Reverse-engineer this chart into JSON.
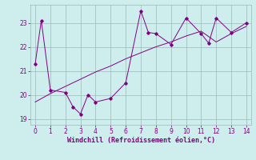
{
  "line1_x": [
    0,
    0.4,
    1,
    2,
    2.5,
    3,
    3.5,
    4,
    5,
    6,
    7,
    7.5,
    8,
    9,
    10,
    11,
    11.5,
    12,
    13,
    14
  ],
  "line1_y": [
    21.3,
    23.1,
    20.2,
    20.1,
    19.5,
    19.2,
    20.0,
    19.7,
    19.85,
    20.5,
    23.5,
    22.6,
    22.55,
    22.1,
    23.2,
    22.55,
    22.15,
    23.2,
    22.6,
    23.0
  ],
  "line2_x": [
    0,
    1,
    2,
    3,
    4,
    5,
    6,
    7,
    8,
    9,
    10,
    11,
    12,
    13,
    14
  ],
  "line2_y": [
    19.7,
    20.05,
    20.35,
    20.65,
    20.95,
    21.2,
    21.5,
    21.75,
    22.0,
    22.2,
    22.45,
    22.65,
    22.2,
    22.55,
    22.85
  ],
  "color": "#800080",
  "bg_color": "#ceeeed",
  "grid_color": "#9db8b8",
  "xlabel": "Windchill (Refroidissement éolien,°C)",
  "xlabel_color": "#800080",
  "xlim": [
    -0.3,
    14.3
  ],
  "ylim": [
    18.75,
    23.75
  ],
  "yticks": [
    19,
    20,
    21,
    22,
    23
  ],
  "xticks": [
    0,
    1,
    2,
    3,
    4,
    5,
    6,
    7,
    8,
    9,
    10,
    11,
    12,
    13,
    14
  ],
  "figsize": [
    3.2,
    2.0
  ],
  "dpi": 100
}
